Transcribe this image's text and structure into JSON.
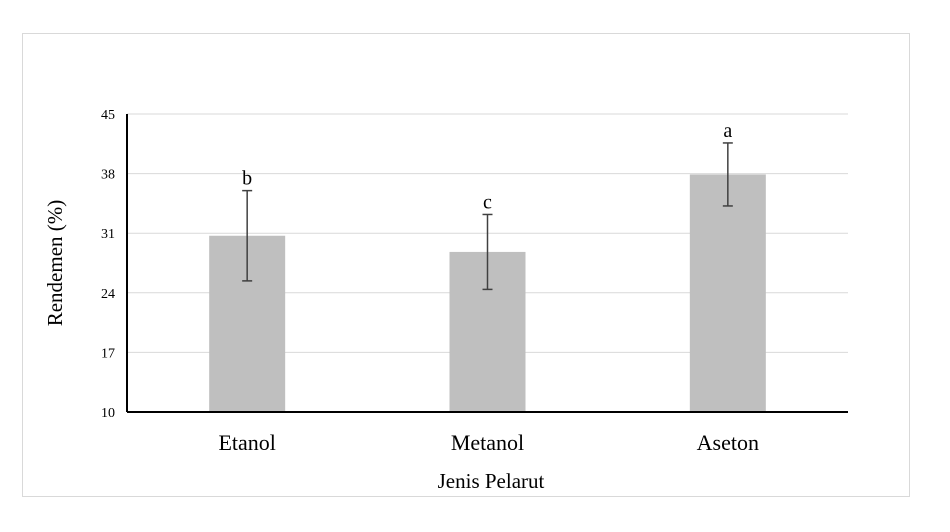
{
  "chart_data": {
    "type": "bar",
    "title": "",
    "xlabel": "Jenis Pelarut",
    "ylabel": "Rendemen (%)",
    "categories": [
      "Etanol",
      "Metanol",
      "Aseton"
    ],
    "values": [
      30.7,
      28.8,
      37.9
    ],
    "error": [
      5.3,
      4.4,
      3.7
    ],
    "significance_labels": [
      "b",
      "c",
      "a"
    ],
    "ylim": [
      10,
      45
    ],
    "yticks": [
      "10",
      "17",
      "24",
      "31",
      "38",
      "45"
    ],
    "grid": true,
    "legend": "none",
    "colors": {
      "bar": "#bfbfbf",
      "grid": "#d9d9d9",
      "axis": "#000000",
      "error": "#404040"
    }
  }
}
